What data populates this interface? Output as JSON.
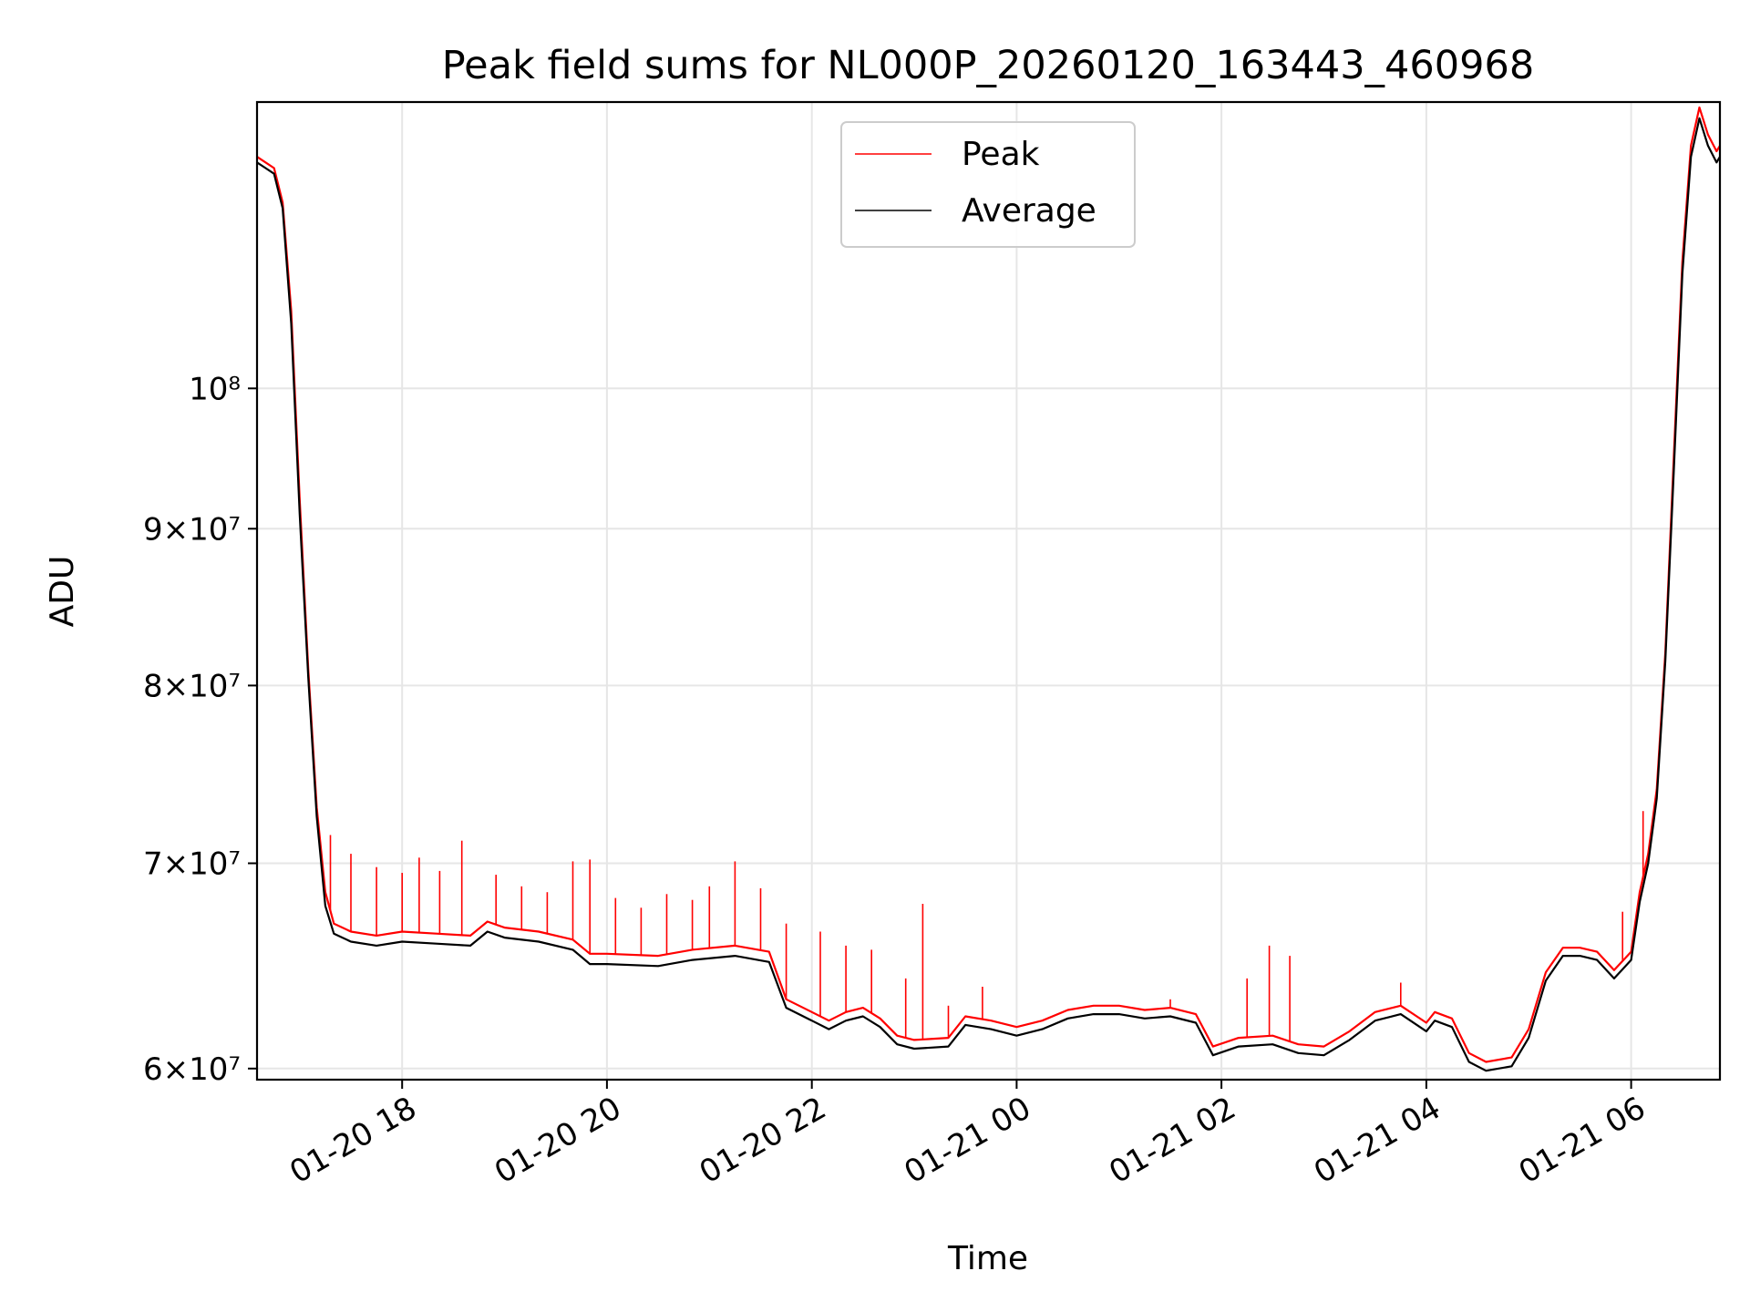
{
  "chart_data": {
    "type": "line",
    "title": "Peak field sums for NL000P_20260120_163443_460968",
    "xlabel": "Time",
    "ylabel": "ADU",
    "yscale": "log",
    "grid": true,
    "legend_position": "top-center",
    "xlim": [
      "2026-01-20 16:35",
      "2026-01-21 06:52"
    ],
    "ylim": [
      59500000,
      124000000
    ],
    "x_ticks": [
      {
        "label": "01-20 18",
        "time": "2026-01-20 18:00"
      },
      {
        "label": "01-20 20",
        "time": "2026-01-20 20:00"
      },
      {
        "label": "01-20 22",
        "time": "2026-01-20 22:00"
      },
      {
        "label": "01-21 00",
        "time": "2026-01-21 00:00"
      },
      {
        "label": "01-21 02",
        "time": "2026-01-21 02:00"
      },
      {
        "label": "01-21 04",
        "time": "2026-01-21 04:00"
      },
      {
        "label": "01-21 06",
        "time": "2026-01-21 06:00"
      }
    ],
    "y_ticks": [
      {
        "label": "6×10⁷",
        "value": 60000000
      },
      {
        "label": "7×10⁷",
        "value": 70000000
      },
      {
        "label": "8×10⁷",
        "value": 80000000
      },
      {
        "label": "9×10⁷",
        "value": 90000000
      },
      {
        "label": "10⁸",
        "value": 100000000
      }
    ],
    "series": [
      {
        "name": "Peak",
        "color": "#ff0000",
        "points": [
          [
            "2026-01-20 16:35",
            119000000
          ],
          [
            "2026-01-20 16:40",
            118500000
          ],
          [
            "2026-01-20 16:45",
            118000000
          ],
          [
            "2026-01-20 16:50",
            115000000
          ],
          [
            "2026-01-20 16:55",
            106000000
          ],
          [
            "2026-01-20 17:00",
            92000000
          ],
          [
            "2026-01-20 17:05",
            81000000
          ],
          [
            "2026-01-20 17:10",
            73000000
          ],
          [
            "2026-01-20 17:15",
            68500000
          ],
          [
            "2026-01-20 17:20",
            66900000
          ],
          [
            "2026-01-20 17:30",
            66500000
          ],
          [
            "2026-01-20 17:45",
            66300000
          ],
          [
            "2026-01-20 18:00",
            66500000
          ],
          [
            "2026-01-20 18:20",
            66400000
          ],
          [
            "2026-01-20 18:40",
            66300000
          ],
          [
            "2026-01-20 18:50",
            67000000
          ],
          [
            "2026-01-20 19:00",
            66700000
          ],
          [
            "2026-01-20 19:20",
            66500000
          ],
          [
            "2026-01-20 19:40",
            66100000
          ],
          [
            "2026-01-20 19:50",
            65400000
          ],
          [
            "2026-01-20 20:00",
            65400000
          ],
          [
            "2026-01-20 20:30",
            65300000
          ],
          [
            "2026-01-20 20:50",
            65600000
          ],
          [
            "2026-01-20 21:15",
            65800000
          ],
          [
            "2026-01-20 21:35",
            65500000
          ],
          [
            "2026-01-20 21:45",
            63200000
          ],
          [
            "2026-01-20 22:00",
            62600000
          ],
          [
            "2026-01-20 22:10",
            62200000
          ],
          [
            "2026-01-20 22:20",
            62600000
          ],
          [
            "2026-01-20 22:30",
            62800000
          ],
          [
            "2026-01-20 22:40",
            62300000
          ],
          [
            "2026-01-20 22:50",
            61500000
          ],
          [
            "2026-01-20 23:00",
            61300000
          ],
          [
            "2026-01-20 23:20",
            61400000
          ],
          [
            "2026-01-20 23:30",
            62400000
          ],
          [
            "2026-01-20 23:45",
            62200000
          ],
          [
            "2026-01-21 00:00",
            61900000
          ],
          [
            "2026-01-21 00:15",
            62200000
          ],
          [
            "2026-01-21 00:30",
            62700000
          ],
          [
            "2026-01-21 00:45",
            62900000
          ],
          [
            "2026-01-21 01:00",
            62900000
          ],
          [
            "2026-01-21 01:15",
            62700000
          ],
          [
            "2026-01-21 01:30",
            62800000
          ],
          [
            "2026-01-21 01:45",
            62500000
          ],
          [
            "2026-01-21 01:55",
            61000000
          ],
          [
            "2026-01-21 02:10",
            61400000
          ],
          [
            "2026-01-21 02:30",
            61500000
          ],
          [
            "2026-01-21 02:45",
            61100000
          ],
          [
            "2026-01-21 03:00",
            61000000
          ],
          [
            "2026-01-21 03:15",
            61700000
          ],
          [
            "2026-01-21 03:30",
            62600000
          ],
          [
            "2026-01-21 03:45",
            62900000
          ],
          [
            "2026-01-21 04:00",
            62100000
          ],
          [
            "2026-01-21 04:05",
            62600000
          ],
          [
            "2026-01-21 04:15",
            62300000
          ],
          [
            "2026-01-21 04:25",
            60700000
          ],
          [
            "2026-01-21 04:35",
            60300000
          ],
          [
            "2026-01-21 04:50",
            60500000
          ],
          [
            "2026-01-21 05:00",
            61800000
          ],
          [
            "2026-01-21 05:10",
            64500000
          ],
          [
            "2026-01-21 05:20",
            65700000
          ],
          [
            "2026-01-21 05:30",
            65700000
          ],
          [
            "2026-01-21 05:40",
            65500000
          ],
          [
            "2026-01-21 05:50",
            64600000
          ],
          [
            "2026-01-21 06:00",
            65500000
          ],
          [
            "2026-01-21 06:05",
            68500000
          ],
          [
            "2026-01-21 06:10",
            70500000
          ],
          [
            "2026-01-21 06:15",
            74000000
          ],
          [
            "2026-01-21 06:20",
            82000000
          ],
          [
            "2026-01-21 06:25",
            95000000
          ],
          [
            "2026-01-21 06:30",
            110000000
          ],
          [
            "2026-01-21 06:35",
            120000000
          ],
          [
            "2026-01-21 06:40",
            123500000
          ],
          [
            "2026-01-21 06:45",
            121000000
          ],
          [
            "2026-01-21 06:50",
            119500000
          ],
          [
            "2026-01-21 06:52",
            120000000
          ]
        ],
        "spikes": [
          [
            "2026-01-20 17:18",
            71500000
          ],
          [
            "2026-01-20 17:30",
            70500000
          ],
          [
            "2026-01-20 17:45",
            69800000
          ],
          [
            "2026-01-20 18:00",
            69500000
          ],
          [
            "2026-01-20 18:10",
            70300000
          ],
          [
            "2026-01-20 18:22",
            69600000
          ],
          [
            "2026-01-20 18:35",
            71200000
          ],
          [
            "2026-01-20 18:55",
            69400000
          ],
          [
            "2026-01-20 19:10",
            68800000
          ],
          [
            "2026-01-20 19:25",
            68500000
          ],
          [
            "2026-01-20 19:40",
            70100000
          ],
          [
            "2026-01-20 19:50",
            70200000
          ],
          [
            "2026-01-20 20:05",
            68200000
          ],
          [
            "2026-01-20 20:20",
            67700000
          ],
          [
            "2026-01-20 20:35",
            68400000
          ],
          [
            "2026-01-20 20:50",
            68100000
          ],
          [
            "2026-01-20 21:00",
            68800000
          ],
          [
            "2026-01-20 21:15",
            70100000
          ],
          [
            "2026-01-20 21:30",
            68700000
          ],
          [
            "2026-01-20 21:45",
            66900000
          ],
          [
            "2026-01-20 22:05",
            66500000
          ],
          [
            "2026-01-20 22:20",
            65800000
          ],
          [
            "2026-01-20 22:35",
            65600000
          ],
          [
            "2026-01-20 22:55",
            64200000
          ],
          [
            "2026-01-20 23:05",
            67900000
          ],
          [
            "2026-01-20 23:20",
            62900000
          ],
          [
            "2026-01-20 23:40",
            63800000
          ],
          [
            "2026-01-21 01:30",
            63200000
          ],
          [
            "2026-01-21 02:15",
            64200000
          ],
          [
            "2026-01-21 02:28",
            65800000
          ],
          [
            "2026-01-21 02:40",
            65300000
          ],
          [
            "2026-01-21 03:45",
            64000000
          ],
          [
            "2026-01-21 05:55",
            67500000
          ],
          [
            "2026-01-21 06:07",
            72800000
          ]
        ]
      },
      {
        "name": "Average",
        "color": "#000000",
        "points": [
          [
            "2026-01-20 16:35",
            118500000
          ],
          [
            "2026-01-20 16:40",
            118000000
          ],
          [
            "2026-01-20 16:45",
            117500000
          ],
          [
            "2026-01-20 16:50",
            114500000
          ],
          [
            "2026-01-20 16:55",
            105000000
          ],
          [
            "2026-01-20 17:00",
            91000000
          ],
          [
            "2026-01-20 17:05",
            80500000
          ],
          [
            "2026-01-20 17:10",
            72500000
          ],
          [
            "2026-01-20 17:15",
            67800000
          ],
          [
            "2026-01-20 17:20",
            66400000
          ],
          [
            "2026-01-20 17:30",
            66000000
          ],
          [
            "2026-01-20 17:45",
            65800000
          ],
          [
            "2026-01-20 18:00",
            66000000
          ],
          [
            "2026-01-20 18:20",
            65900000
          ],
          [
            "2026-01-20 18:40",
            65800000
          ],
          [
            "2026-01-20 18:50",
            66500000
          ],
          [
            "2026-01-20 19:00",
            66200000
          ],
          [
            "2026-01-20 19:20",
            66000000
          ],
          [
            "2026-01-20 19:40",
            65600000
          ],
          [
            "2026-01-20 19:50",
            64900000
          ],
          [
            "2026-01-20 20:00",
            64900000
          ],
          [
            "2026-01-20 20:30",
            64800000
          ],
          [
            "2026-01-20 20:50",
            65100000
          ],
          [
            "2026-01-20 21:15",
            65300000
          ],
          [
            "2026-01-20 21:35",
            65000000
          ],
          [
            "2026-01-20 21:45",
            62800000
          ],
          [
            "2026-01-20 22:00",
            62200000
          ],
          [
            "2026-01-20 22:10",
            61800000
          ],
          [
            "2026-01-20 22:20",
            62200000
          ],
          [
            "2026-01-20 22:30",
            62400000
          ],
          [
            "2026-01-20 22:40",
            61900000
          ],
          [
            "2026-01-20 22:50",
            61100000
          ],
          [
            "2026-01-20 23:00",
            60900000
          ],
          [
            "2026-01-20 23:20",
            61000000
          ],
          [
            "2026-01-20 23:30",
            62000000
          ],
          [
            "2026-01-20 23:45",
            61800000
          ],
          [
            "2026-01-21 00:00",
            61500000
          ],
          [
            "2026-01-21 00:15",
            61800000
          ],
          [
            "2026-01-21 00:30",
            62300000
          ],
          [
            "2026-01-21 00:45",
            62500000
          ],
          [
            "2026-01-21 01:00",
            62500000
          ],
          [
            "2026-01-21 01:15",
            62300000
          ],
          [
            "2026-01-21 01:30",
            62400000
          ],
          [
            "2026-01-21 01:45",
            62100000
          ],
          [
            "2026-01-21 01:55",
            60600000
          ],
          [
            "2026-01-21 02:10",
            61000000
          ],
          [
            "2026-01-21 02:30",
            61100000
          ],
          [
            "2026-01-21 02:45",
            60700000
          ],
          [
            "2026-01-21 03:00",
            60600000
          ],
          [
            "2026-01-21 03:15",
            61300000
          ],
          [
            "2026-01-21 03:30",
            62200000
          ],
          [
            "2026-01-21 03:45",
            62500000
          ],
          [
            "2026-01-21 04:00",
            61700000
          ],
          [
            "2026-01-21 04:05",
            62200000
          ],
          [
            "2026-01-21 04:15",
            61900000
          ],
          [
            "2026-01-21 04:25",
            60300000
          ],
          [
            "2026-01-21 04:35",
            59900000
          ],
          [
            "2026-01-21 04:50",
            60100000
          ],
          [
            "2026-01-21 05:00",
            61400000
          ],
          [
            "2026-01-21 05:10",
            64100000
          ],
          [
            "2026-01-21 05:20",
            65300000
          ],
          [
            "2026-01-21 05:30",
            65300000
          ],
          [
            "2026-01-21 05:40",
            65100000
          ],
          [
            "2026-01-21 05:50",
            64200000
          ],
          [
            "2026-01-21 06:00",
            65100000
          ],
          [
            "2026-01-21 06:05",
            68000000
          ],
          [
            "2026-01-21 06:10",
            70000000
          ],
          [
            "2026-01-21 06:15",
            73500000
          ],
          [
            "2026-01-21 06:20",
            81500000
          ],
          [
            "2026-01-21 06:25",
            94000000
          ],
          [
            "2026-01-21 06:30",
            109000000
          ],
          [
            "2026-01-21 06:35",
            119000000
          ],
          [
            "2026-01-21 06:40",
            122500000
          ],
          [
            "2026-01-21 06:45",
            120000000
          ],
          [
            "2026-01-21 06:50",
            118500000
          ],
          [
            "2026-01-21 06:52",
            119000000
          ]
        ]
      }
    ]
  }
}
